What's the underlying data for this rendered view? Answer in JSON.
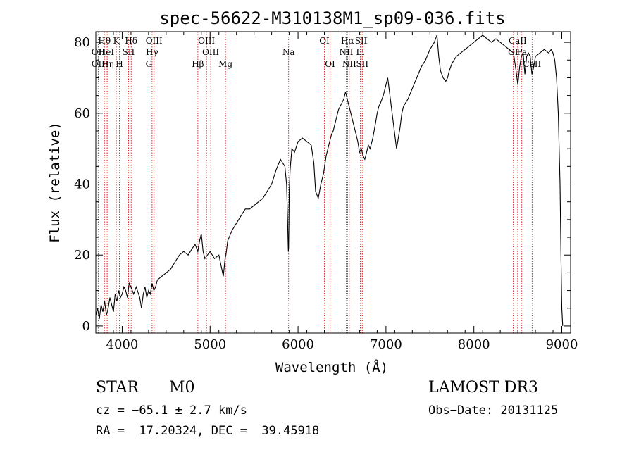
{
  "chart_data": {
    "type": "line",
    "title": "spec-56622-M310138M1_sp09-036.fits",
    "xlabel": "Wavelength (Å)",
    "ylabel": "Flux (relative)",
    "xlim": [
      3700,
      9100
    ],
    "ylim": [
      -2,
      83
    ],
    "xticks": [
      4000,
      5000,
      6000,
      7000,
      8000,
      9000
    ],
    "yticks": [
      0,
      20,
      40,
      60,
      80
    ],
    "series": [
      {
        "name": "flux",
        "x": [
          3700,
          3720,
          3740,
          3760,
          3780,
          3800,
          3820,
          3840,
          3860,
          3880,
          3900,
          3920,
          3940,
          3960,
          3980,
          4000,
          4020,
          4040,
          4060,
          4080,
          4100,
          4130,
          4160,
          4200,
          4220,
          4240,
          4260,
          4280,
          4300,
          4320,
          4340,
          4360,
          4380,
          4400,
          4450,
          4500,
          4550,
          4600,
          4650,
          4700,
          4750,
          4800,
          4830,
          4860,
          4880,
          4900,
          4920,
          4940,
          4970,
          5000,
          5050,
          5100,
          5150,
          5170,
          5180,
          5200,
          5250,
          5300,
          5350,
          5400,
          5450,
          5500,
          5550,
          5600,
          5650,
          5700,
          5750,
          5800,
          5850,
          5870,
          5880,
          5890,
          5893,
          5896,
          5900,
          5910,
          5930,
          5960,
          6000,
          6050,
          6100,
          6150,
          6180,
          6200,
          6230,
          6260,
          6290,
          6320,
          6340,
          6360,
          6380,
          6400,
          6420,
          6440,
          6460,
          6480,
          6500,
          6520,
          6540,
          6560,
          6580,
          6600,
          6620,
          6640,
          6660,
          6680,
          6700,
          6720,
          6740,
          6760,
          6780,
          6800,
          6820,
          6850,
          6880,
          6900,
          6920,
          6940,
          6970,
          7000,
          7020,
          7040,
          7060,
          7080,
          7100,
          7120,
          7140,
          7160,
          7180,
          7200,
          7250,
          7300,
          7350,
          7400,
          7450,
          7500,
          7550,
          7580,
          7600,
          7620,
          7650,
          7680,
          7700,
          7720,
          7750,
          7800,
          7850,
          7900,
          7950,
          8000,
          8050,
          8100,
          8150,
          8200,
          8250,
          8300,
          8350,
          8400,
          8450,
          8480,
          8500,
          8520,
          8540,
          8560,
          8580,
          8600,
          8620,
          8640,
          8660,
          8680,
          8700,
          8750,
          8800,
          8850,
          8880,
          8900,
          8920,
          8940,
          8960,
          8980,
          8990,
          9000,
          9010
        ],
        "y": [
          3,
          5,
          2,
          6,
          4,
          7,
          3,
          5,
          8,
          6,
          4,
          9,
          7,
          10,
          8,
          9,
          11,
          10,
          8,
          12,
          11,
          9,
          11,
          8,
          5,
          9,
          11,
          8,
          10,
          9,
          12,
          10,
          11,
          13,
          14,
          15,
          16,
          18,
          20,
          21,
          20,
          22,
          23,
          21,
          24,
          26,
          21,
          19,
          20,
          21,
          19,
          20,
          14,
          19,
          20,
          24,
          27,
          29,
          31,
          33,
          33,
          34,
          35,
          36,
          38,
          40,
          44,
          47,
          45,
          40,
          31,
          21,
          22,
          28,
          38,
          44,
          50,
          49,
          52,
          53,
          52,
          51,
          46,
          38,
          36,
          40,
          43,
          48,
          50,
          52,
          54,
          55,
          57,
          59,
          61,
          62,
          63,
          64,
          66,
          64,
          62,
          60,
          58,
          56,
          54,
          52,
          49,
          50,
          48,
          47,
          49,
          51,
          50,
          53,
          57,
          60,
          62,
          63,
          65,
          68,
          70,
          66,
          62,
          58,
          54,
          50,
          53,
          56,
          60,
          62,
          64,
          67,
          70,
          73,
          75,
          78,
          80,
          82,
          76,
          72,
          70,
          69,
          70,
          72,
          74,
          76,
          77,
          78,
          79,
          80,
          81,
          82,
          81,
          80,
          81,
          80,
          79,
          78,
          77,
          72,
          68,
          73,
          76,
          77,
          71,
          76,
          77,
          76,
          71,
          73,
          76,
          77,
          78,
          77,
          78,
          77,
          75,
          70,
          60,
          40,
          20,
          5,
          0
        ]
      }
    ],
    "line_markers": [
      {
        "label": "Hθ",
        "x": 3798,
        "row": 0
      },
      {
        "label": "OII",
        "x": 3727,
        "row": 1
      },
      {
        "label": "OII",
        "x": 3727,
        "row": 2
      },
      {
        "label": "HeI",
        "x": 3820,
        "row": 1
      },
      {
        "label": "Hη",
        "x": 3835,
        "row": 2
      },
      {
        "label": "K",
        "x": 3933,
        "row": 0
      },
      {
        "label": "H",
        "x": 3969,
        "row": 2
      },
      {
        "label": "SII",
        "x": 4072,
        "row": 1
      },
      {
        "label": "Hδ",
        "x": 4102,
        "row": 0
      },
      {
        "label": "OIII",
        "x": 4363,
        "row": 0
      },
      {
        "label": "Hγ",
        "x": 4340,
        "row": 1
      },
      {
        "label": "G",
        "x": 4304,
        "row": 2
      },
      {
        "label": "Hβ",
        "x": 4861,
        "row": 2
      },
      {
        "label": "OIII",
        "x": 4959,
        "row": 0
      },
      {
        "label": "OIII",
        "x": 5007,
        "row": 1
      },
      {
        "label": "Mg",
        "x": 5175,
        "row": 2
      },
      {
        "label": "Na",
        "x": 5893,
        "row": 1
      },
      {
        "label": "OI",
        "x": 6300,
        "row": 0
      },
      {
        "label": "OI",
        "x": 6364,
        "row": 2
      },
      {
        "label": "Hα",
        "x": 6563,
        "row": 0
      },
      {
        "label": "NII",
        "x": 6548,
        "row": 1
      },
      {
        "label": "NII",
        "x": 6583,
        "row": 2
      },
      {
        "label": "SII",
        "x": 6717,
        "row": 0
      },
      {
        "label": "Li",
        "x": 6708,
        "row": 1
      },
      {
        "label": "SII",
        "x": 6731,
        "row": 2
      },
      {
        "label": "CaII",
        "x": 8498,
        "row": 0
      },
      {
        "label": "OI",
        "x": 8446,
        "row": 1
      },
      {
        "label": "Pa",
        "x": 8545,
        "row": 1
      },
      {
        "label": "CaII",
        "x": 8662,
        "row": 2
      }
    ]
  },
  "info": {
    "class": "STAR",
    "subclass": "M0",
    "survey": "LAMOST DR3",
    "cz": "cz = −65.1 ± 2.7 km/s",
    "obs_date": "Obs−Date: 20131125",
    "coords": "RA =  17.20324, DEC =  39.45918"
  },
  "colors": {
    "line": "#000000",
    "marker": "#cc0000",
    "axis": "#000000"
  }
}
